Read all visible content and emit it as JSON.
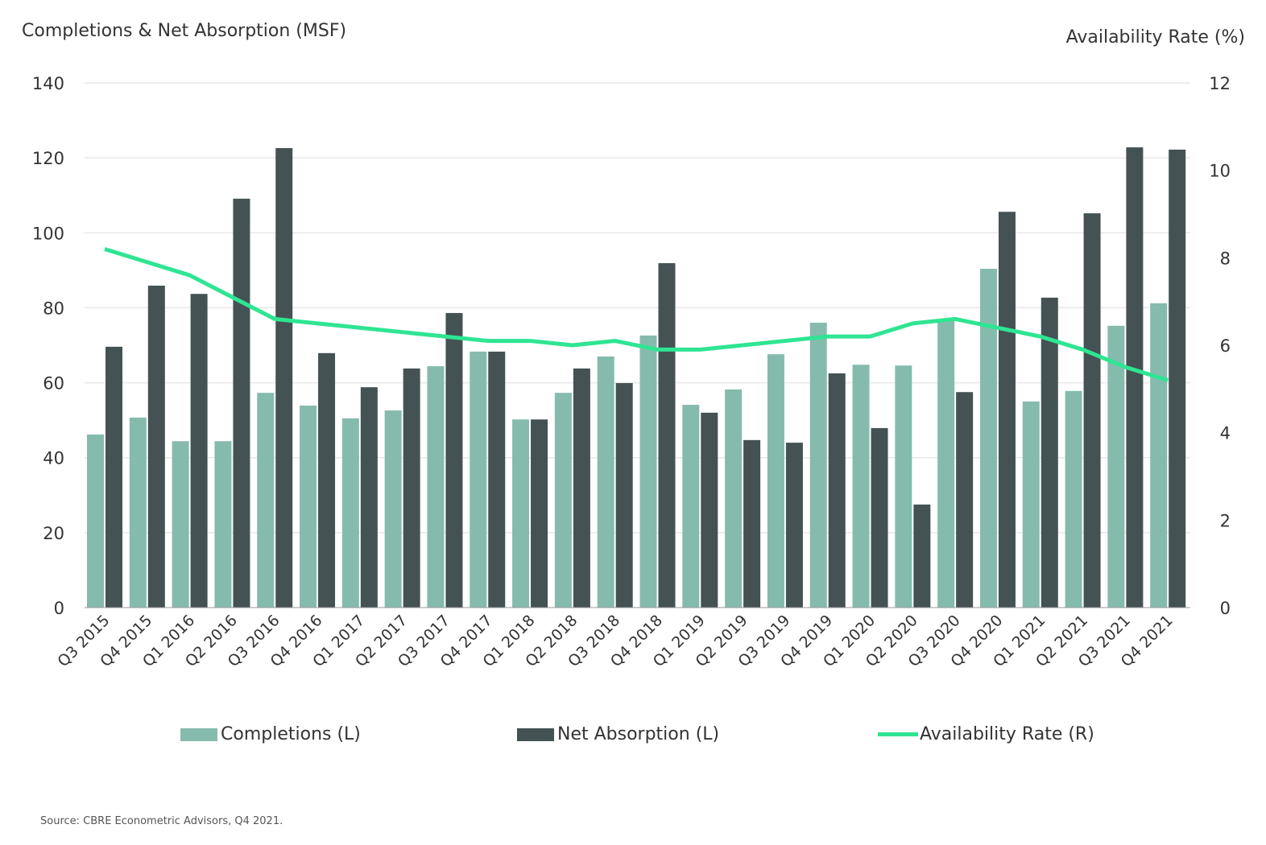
{
  "chart_data": {
    "type": "bar",
    "title": "",
    "ylabel_left": "Completions & Net Absorption (MSF)",
    "ylabel_right": "Availability Rate (%)",
    "ylim_left": [
      0,
      140
    ],
    "yticks_left": [
      0,
      20,
      40,
      60,
      80,
      100,
      120,
      140
    ],
    "ylim_right": [
      0,
      12
    ],
    "yticks_right": [
      0,
      2,
      4,
      6,
      8,
      10,
      12
    ],
    "grid": true,
    "legend_placement": "bottom",
    "categories": [
      "Q3 2015",
      "Q4 2015",
      "Q1 2016",
      "Q2 2016",
      "Q3 2016",
      "Q4 2016",
      "Q1 2017",
      "Q2 2017",
      "Q3 2017",
      "Q4 2017",
      "Q1 2018",
      "Q2 2018",
      "Q3 2018",
      "Q4 2018",
      "Q1 2019",
      "Q2 2019",
      "Q3 2019",
      "Q4 2019",
      "Q1 2020",
      "Q2 2020",
      "Q3 2020",
      "Q4 2020",
      "Q1 2021",
      "Q2 2021",
      "Q3 2021",
      "Q4 2021"
    ],
    "series": [
      {
        "name": "Completions (L)",
        "type": "bar",
        "axis": "left",
        "color": "#85bbad",
        "values": [
          46.2,
          50.7,
          44.4,
          44.4,
          57.3,
          53.9,
          50.5,
          52.6,
          64.4,
          68.3,
          50.2,
          57.3,
          67.0,
          72.6,
          54.1,
          58.2,
          67.6,
          76.0,
          64.8,
          64.6,
          76.5,
          90.4,
          55.0,
          57.8,
          75.2,
          81.2
        ]
      },
      {
        "name": "Net Absorption (L)",
        "type": "bar",
        "axis": "left",
        "color": "#445254",
        "values": [
          69.6,
          85.9,
          83.7,
          109.1,
          122.6,
          67.9,
          58.8,
          63.8,
          78.6,
          68.3,
          50.2,
          63.8,
          59.9,
          91.9,
          52.0,
          44.7,
          44.0,
          62.5,
          47.9,
          27.5,
          57.5,
          105.6,
          82.7,
          105.2,
          122.8,
          122.2
        ]
      },
      {
        "name": "Availability Rate (R)",
        "type": "line",
        "axis": "right",
        "color": "#2ee592",
        "values": [
          8.2,
          7.9,
          7.6,
          7.1,
          6.6,
          6.5,
          6.4,
          6.3,
          6.2,
          6.1,
          6.1,
          6.0,
          6.1,
          5.9,
          5.9,
          6.0,
          6.1,
          6.2,
          6.2,
          6.5,
          6.6,
          6.4,
          6.2,
          5.9,
          5.5,
          5.2
        ]
      }
    ]
  },
  "source": "Source: CBRE Econometric Advisors, Q4 2021."
}
